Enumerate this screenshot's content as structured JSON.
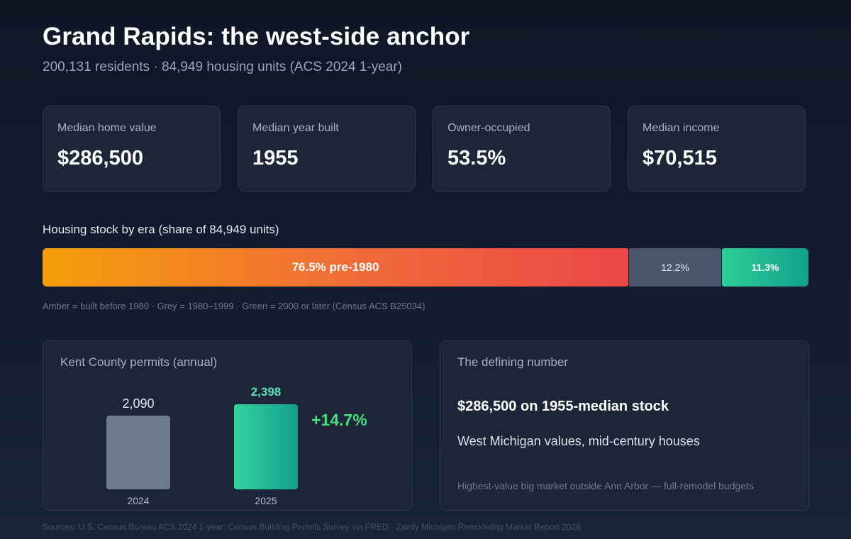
{
  "header": {
    "title": "Grand Rapids: the west-side anchor",
    "subtitle": "200,131 residents · 84,949 housing units (ACS 2024 1-year)"
  },
  "cards": [
    {
      "label": "Median home value",
      "value": "$286,500"
    },
    {
      "label": "Median year built",
      "value": "1955"
    },
    {
      "label": "Owner-occupied",
      "value": "53.5%"
    },
    {
      "label": "Median income",
      "value": "$70,515"
    }
  ],
  "era": {
    "title": "Housing stock by era (share of 84,949 units)",
    "segments": [
      {
        "label": "76.5% pre-1980",
        "value": 76.5,
        "color": "#f59e0b"
      },
      {
        "label": "12.2%",
        "value": 12.2,
        "color": "#4a566b"
      },
      {
        "label": "11.3%",
        "value": 11.3,
        "color": "#1fb893"
      }
    ],
    "note": "Amber = built before 1980 · Grey = 1980–1999 · Green = 2000 or later (Census ACS B25034)"
  },
  "permits": {
    "title": "Kent County permits (annual)",
    "growth_label": "+14.7%"
  },
  "chart_data": {
    "type": "bar",
    "title": "Kent County permits (annual)",
    "categories": [
      "2024",
      "2025"
    ],
    "values": [
      2090,
      2398
    ],
    "value_labels": [
      "2,090",
      "2,398"
    ],
    "annotation": "+14.7%",
    "colors": [
      "#6b7a90",
      "#22c197"
    ]
  },
  "defining": {
    "title": "The defining number",
    "headline": "$286,500 on 1955-median stock",
    "sub": "West Michigan values, mid-century houses",
    "note": "Highest-value big market outside Ann Arbor — full-remodel budgets"
  },
  "footer": {
    "sources": "Sources: U.S. Census Bureau ACS 2024 1-year; Census Building Permits Survey via FRED · Zainfy Michigan Remodeling Market Report 2026"
  }
}
